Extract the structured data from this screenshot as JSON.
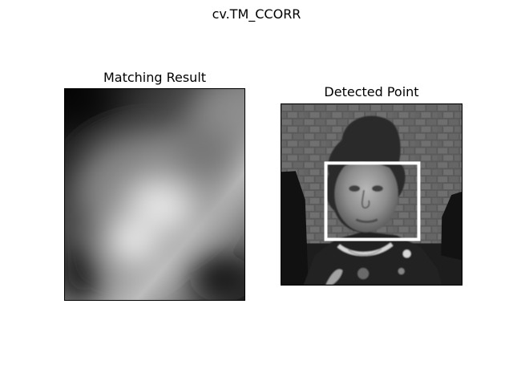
{
  "figure": {
    "suptitle": "cv.TM_CCORR"
  },
  "panels": {
    "left": {
      "title": "Matching Result",
      "content": "grayscale-heatmap"
    },
    "right": {
      "title": "Detected Point",
      "content": "grayscale-photo-with-rectangle"
    }
  },
  "colors": {
    "background": "#ffffff",
    "axes_border": "#000000",
    "rectangle": "#ffffff"
  }
}
